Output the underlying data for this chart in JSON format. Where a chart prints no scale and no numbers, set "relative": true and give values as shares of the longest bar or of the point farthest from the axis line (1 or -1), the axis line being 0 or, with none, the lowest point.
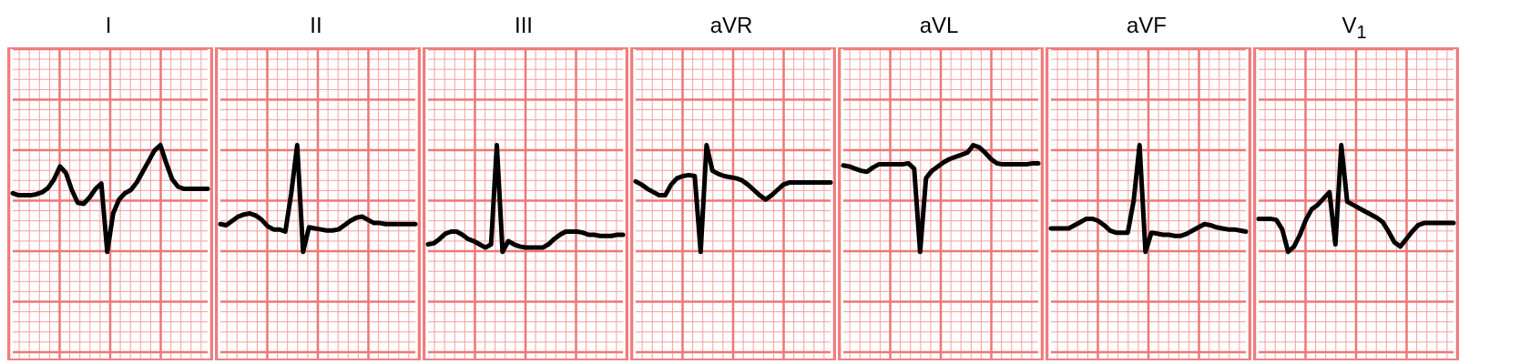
{
  "chart_data": [
    {
      "type": "line",
      "title": "I",
      "relative": true,
      "grid": true,
      "categories": [
        null,
        null,
        null,
        null,
        null,
        null,
        null,
        null,
        null,
        null,
        null,
        null,
        null,
        null,
        null,
        null,
        null,
        null,
        null,
        null,
        null,
        null,
        null,
        null,
        null,
        null,
        null,
        null,
        null,
        null,
        null,
        null,
        null,
        null
      ],
      "series": [
        {
          "color": "#000000",
          "values": [
            0.55,
            0.53,
            0.53,
            0.53,
            0.54,
            0.56,
            0.6,
            0.68,
            0.8,
            0.74,
            0.58,
            0.46,
            0.45,
            0.51,
            0.59,
            0.64,
            0,
            0.36,
            0.49,
            0.55,
            0.58,
            0.65,
            0.75,
            0.85,
            0.95,
            1,
            0.83,
            0.68,
            0.61,
            0.59,
            0.59,
            0.59,
            0.59,
            0.59
          ]
        }
      ]
    },
    {
      "type": "line",
      "title": "II",
      "relative": true,
      "grid": true,
      "categories": [
        null,
        null,
        null,
        null,
        null,
        null,
        null,
        null,
        null,
        null,
        null,
        null,
        null,
        null,
        null,
        null,
        null,
        null,
        null,
        null,
        null,
        null,
        null,
        null,
        null,
        null,
        null,
        null,
        null,
        null,
        null,
        null,
        null,
        null
      ],
      "series": [
        {
          "color": "#000000",
          "values": [
            0.26,
            0.25,
            0.29,
            0.33,
            0.35,
            0.36,
            0.34,
            0.3,
            0.24,
            0.21,
            0.21,
            0.19,
            0.55,
            1,
            0,
            0.23,
            0.22,
            0.21,
            0.2,
            0.2,
            0.21,
            0.25,
            0.29,
            0.32,
            0.33,
            0.3,
            0.27,
            0.27,
            0.26,
            0.26,
            0.26,
            0.26,
            0.26,
            0.26
          ]
        }
      ]
    },
    {
      "type": "line",
      "title": "III",
      "relative": true,
      "grid": true,
      "categories": [
        null,
        null,
        null,
        null,
        null,
        null,
        null,
        null,
        null,
        null,
        null,
        null,
        null,
        null,
        null,
        null,
        null,
        null,
        null,
        null,
        null,
        null,
        null,
        null,
        null,
        null,
        null,
        null,
        null,
        null,
        null,
        null,
        null,
        null,
        null
      ],
      "series": [
        {
          "color": "#000000",
          "values": [
            0.07,
            0.08,
            0.12,
            0.17,
            0.19,
            0.19,
            0.16,
            0.12,
            0.1,
            0.07,
            0.04,
            0.07,
            1,
            0,
            0.1,
            0.07,
            0.05,
            0.04,
            0.04,
            0.04,
            0.04,
            0.07,
            0.12,
            0.16,
            0.19,
            0.19,
            0.19,
            0.18,
            0.16,
            0.16,
            0.15,
            0.15,
            0.15,
            0.16,
            0.16
          ]
        }
      ]
    },
    {
      "type": "line",
      "title": "aVR",
      "relative": true,
      "grid": true,
      "categories": [
        null,
        null,
        null,
        null,
        null,
        null,
        null,
        null,
        null,
        null,
        null,
        null,
        null,
        null,
        null,
        null,
        null,
        null,
        null,
        null,
        null,
        null,
        null,
        null,
        null,
        null,
        null,
        null,
        null,
        null,
        null,
        null,
        null,
        null
      ],
      "series": [
        {
          "color": "#000000",
          "values": [
            0.66,
            0.63,
            0.59,
            0.56,
            0.53,
            0.53,
            0.63,
            0.69,
            0.71,
            0.72,
            0.71,
            0,
            1,
            0.76,
            0.73,
            0.71,
            0.7,
            0.69,
            0.67,
            0.63,
            0.58,
            0.53,
            0.49,
            0.53,
            0.58,
            0.63,
            0.65,
            0.65,
            0.65,
            0.65,
            0.65,
            0.65,
            0.65,
            0.65
          ]
        }
      ]
    },
    {
      "type": "line",
      "title": "aVL",
      "relative": true,
      "grid": true,
      "categories": [
        null,
        null,
        null,
        null,
        null,
        null,
        null,
        null,
        null,
        null,
        null,
        null,
        null,
        null,
        null,
        null,
        null,
        null,
        null,
        null,
        null,
        null,
        null,
        null,
        null,
        null,
        null,
        null,
        null,
        null,
        null,
        null,
        null,
        null
      ],
      "series": [
        {
          "color": "#000000",
          "values": [
            0.81,
            0.8,
            0.78,
            0.76,
            0.75,
            0.79,
            0.82,
            0.82,
            0.82,
            0.82,
            0.82,
            0.83,
            0.78,
            0,
            0.69,
            0.76,
            0.8,
            0.84,
            0.87,
            0.89,
            0.91,
            0.93,
            1,
            0.98,
            0.93,
            0.87,
            0.83,
            0.82,
            0.82,
            0.82,
            0.82,
            0.82,
            0.83,
            0.83
          ]
        }
      ]
    },
    {
      "type": "line",
      "title": "aVF",
      "relative": true,
      "grid": true,
      "categories": [
        null,
        null,
        null,
        null,
        null,
        null,
        null,
        null,
        null,
        null,
        null,
        null,
        null,
        null,
        null,
        null,
        null,
        null,
        null,
        null,
        null,
        null,
        null,
        null,
        null,
        null,
        null,
        null,
        null,
        null,
        null,
        null,
        null,
        null
      ],
      "series": [
        {
          "color": "#000000",
          "values": [
            0.22,
            0.22,
            0.22,
            0.22,
            0.25,
            0.28,
            0.31,
            0.31,
            0.29,
            0.25,
            0.2,
            0.18,
            0.18,
            0.18,
            0.48,
            1,
            0,
            0.18,
            0.17,
            0.16,
            0.16,
            0.15,
            0.15,
            0.17,
            0.2,
            0.23,
            0.26,
            0.25,
            0.23,
            0.22,
            0.21,
            0.21,
            0.2,
            0.19
          ]
        }
      ]
    },
    {
      "type": "line",
      "title": "V$_{1}$",
      "relative": true,
      "grid": true,
      "categories": [
        null,
        null,
        null,
        null,
        null,
        null,
        null,
        null,
        null,
        null,
        null,
        null,
        null,
        null,
        null,
        null,
        null,
        null,
        null,
        null,
        null,
        null,
        null,
        null,
        null,
        null,
        null,
        null,
        null,
        null,
        null,
        null,
        null,
        null
      ],
      "series": [
        {
          "color": "#000000",
          "values": [
            0.31,
            0.31,
            0.31,
            0.3,
            0.21,
            0,
            0.05,
            0.16,
            0.3,
            0.4,
            0.44,
            0.5,
            0.56,
            0.07,
            1,
            0.47,
            0.44,
            0.41,
            0.38,
            0.35,
            0.32,
            0.28,
            0.19,
            0.09,
            0.05,
            0.12,
            0.19,
            0.25,
            0.27,
            0.27,
            0.27,
            0.27,
            0.27,
            0.27
          ]
        }
      ]
    }
  ]
}
